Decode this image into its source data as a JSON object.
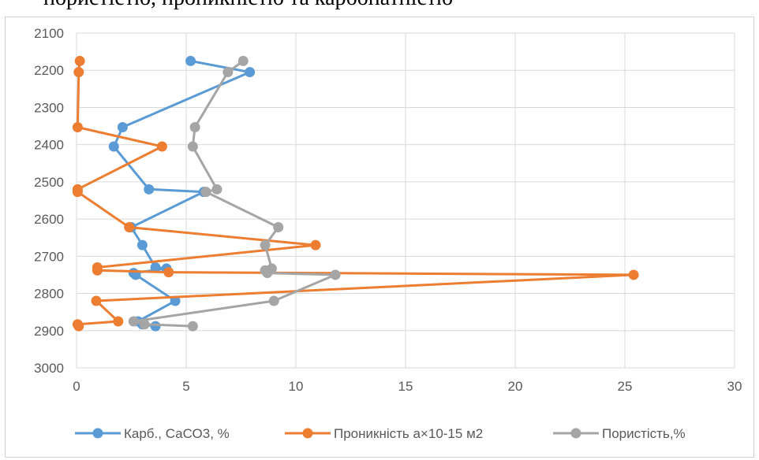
{
  "top_text": "пористістю, проникністю та карбонатністю",
  "chart_data": {
    "type": "scatter",
    "title": "",
    "xlabel": "",
    "ylabel": "",
    "xlim": [
      0,
      30
    ],
    "ylim": [
      2100,
      3000
    ],
    "y_inverted": true,
    "x_ticks": [
      "0",
      "5",
      "10",
      "15",
      "20",
      "25",
      "30"
    ],
    "y_ticks": [
      "2100",
      "2200",
      "2300",
      "2400",
      "2500",
      "2600",
      "2700",
      "2800",
      "2900",
      "3000"
    ],
    "grid": true,
    "legend_position": "bottom",
    "series": [
      {
        "name": "Карб., СаСО3, %",
        "color": "#5B9BD5",
        "points": [
          [
            5.2,
            2175
          ],
          [
            7.9,
            2205
          ],
          [
            2.1,
            2353
          ],
          [
            1.7,
            2405
          ],
          [
            3.3,
            2520
          ],
          [
            5.8,
            2527
          ],
          [
            2.5,
            2622
          ],
          [
            3.0,
            2670
          ],
          [
            3.6,
            2730
          ],
          [
            4.1,
            2733
          ],
          [
            2.6,
            2745
          ],
          [
            2.7,
            2750
          ],
          [
            4.5,
            2820
          ],
          [
            2.8,
            2875
          ],
          [
            3.0,
            2883
          ],
          [
            3.6,
            2888
          ]
        ]
      },
      {
        "name": "Проникність а×10-15 м2",
        "color": "#ED7D31",
        "points": [
          [
            0.15,
            2175
          ],
          [
            0.1,
            2205
          ],
          [
            0.05,
            2353
          ],
          [
            3.9,
            2405
          ],
          [
            0.05,
            2520
          ],
          [
            0.05,
            2527
          ],
          [
            2.4,
            2622
          ],
          [
            10.9,
            2670
          ],
          [
            0.95,
            2730
          ],
          [
            0.95,
            2738
          ],
          [
            4.2,
            2743
          ],
          [
            25.4,
            2750
          ],
          [
            0.9,
            2820
          ],
          [
            1.9,
            2875
          ],
          [
            0.05,
            2883
          ],
          [
            0.1,
            2888
          ]
        ]
      },
      {
        "name": "Пористість,%",
        "color": "#A5A5A5",
        "points": [
          [
            7.6,
            2175
          ],
          [
            6.9,
            2205
          ],
          [
            5.4,
            2353
          ],
          [
            5.3,
            2405
          ],
          [
            6.4,
            2520
          ],
          [
            5.9,
            2527
          ],
          [
            9.2,
            2622
          ],
          [
            8.6,
            2670
          ],
          [
            8.9,
            2733
          ],
          [
            8.6,
            2738
          ],
          [
            8.7,
            2745
          ],
          [
            11.8,
            2750
          ],
          [
            9.0,
            2820
          ],
          [
            2.6,
            2875
          ],
          [
            3.1,
            2883
          ],
          [
            5.3,
            2888
          ]
        ]
      }
    ]
  }
}
